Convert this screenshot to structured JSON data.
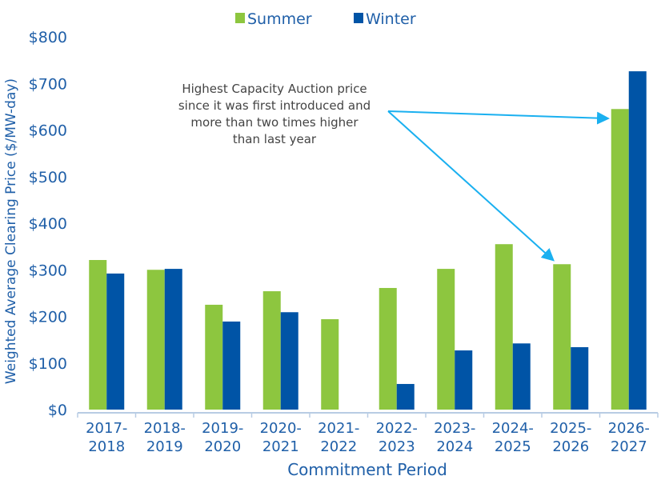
{
  "chart_data": {
    "type": "bar",
    "title": "",
    "xlabel": "Commitment Period",
    "ylabel": "Weighted Average Clearing Price ($/MW-day)",
    "ylim": [
      0,
      800
    ],
    "yticks": [
      "$0",
      "$100",
      "$200",
      "$300",
      "$400",
      "$500",
      "$600",
      "$700",
      "$800"
    ],
    "grid": false,
    "legend_position": "top-center",
    "categories": [
      [
        "2017-",
        "2018"
      ],
      [
        "2018-",
        "2019"
      ],
      [
        "2019-",
        "2020"
      ],
      [
        "2020-",
        "2021"
      ],
      [
        "2021-",
        "2022"
      ],
      [
        "2022-",
        "2023"
      ],
      [
        "2023-",
        "2024"
      ],
      [
        "2024-",
        "2025"
      ],
      [
        "2025-",
        "2026"
      ],
      [
        "2026-",
        "2027"
      ]
    ],
    "series": [
      {
        "name": "Summer",
        "color": "#8DC63F",
        "values": [
          321,
          300,
          225,
          254,
          194,
          261,
          302,
          355,
          312,
          645
        ]
      },
      {
        "name": "Winter",
        "color": "#0054A6",
        "values": [
          292,
          302,
          189,
          209,
          null,
          55,
          127,
          142,
          134,
          726
        ]
      }
    ],
    "annotation": {
      "lines": [
        "Highest Capacity Auction price",
        "since it was first introduced and",
        "more than two times higher",
        "than last year"
      ],
      "arrow_color": "#1AB0F0"
    }
  }
}
